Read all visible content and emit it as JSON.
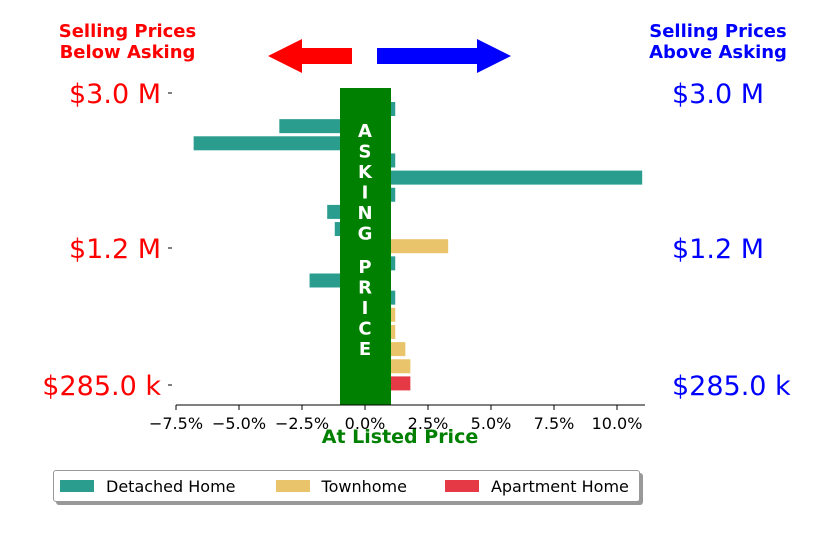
{
  "header_left": {
    "line1": "Selling Prices",
    "line2": "Below Asking",
    "color": "#ff0000"
  },
  "header_right": {
    "line1": "Selling Prices",
    "line2": "Above Asking",
    "color": "#0000ff"
  },
  "center_label": {
    "text": "ASKING PRICE",
    "color": "#008000"
  },
  "chart_data": {
    "type": "bar",
    "orientation": "horizontal",
    "xlabel": "At Listed Price",
    "xlim": [
      -8.5,
      11.5
    ],
    "xticks": [
      -7.5,
      -5.0,
      -2.5,
      0.0,
      2.5,
      5.0,
      7.5,
      10.0
    ],
    "xtick_labels": [
      "−7.5%",
      "−5.0%",
      "−2.5%",
      "0.0%",
      "2.5%",
      "5.0%",
      "7.5%",
      "10.0%"
    ],
    "y_tick_labels_left": [
      "$3.0 M",
      "$1.2 M",
      "$285.0 k"
    ],
    "y_tick_labels_right": [
      "$3.0 M",
      "$1.2 M",
      "$285.0 k"
    ],
    "legend_placement": "bottom-center",
    "series_colors": {
      "Detached Home": "#2a9d8f",
      "Townhome": "#e9c46a",
      "Apartment Home": "#e63946"
    },
    "legend": [
      "Detached Home",
      "Townhome",
      "Apartment Home"
    ],
    "bars": [
      {
        "series": "Detached Home",
        "value": 1.2
      },
      {
        "series": "Detached Home",
        "value": -3.4
      },
      {
        "series": "Detached Home",
        "value": -6.8
      },
      {
        "series": "Detached Home",
        "value": 1.2
      },
      {
        "series": "Detached Home",
        "value": 11.0
      },
      {
        "series": "Detached Home",
        "value": 1.2
      },
      {
        "series": "Detached Home",
        "value": -1.5
      },
      {
        "series": "Detached Home",
        "value": -1.2
      },
      {
        "series": "Townhome",
        "value": 3.3
      },
      {
        "series": "Detached Home",
        "value": 1.2
      },
      {
        "series": "Detached Home",
        "value": -2.2
      },
      {
        "series": "Detached Home",
        "value": 1.2
      },
      {
        "series": "Townhome",
        "value": 1.2
      },
      {
        "series": "Townhome",
        "value": 1.2
      },
      {
        "series": "Townhome",
        "value": 1.6
      },
      {
        "series": "Townhome",
        "value": 1.8
      },
      {
        "series": "Apartment Home",
        "value": 1.8
      }
    ]
  }
}
